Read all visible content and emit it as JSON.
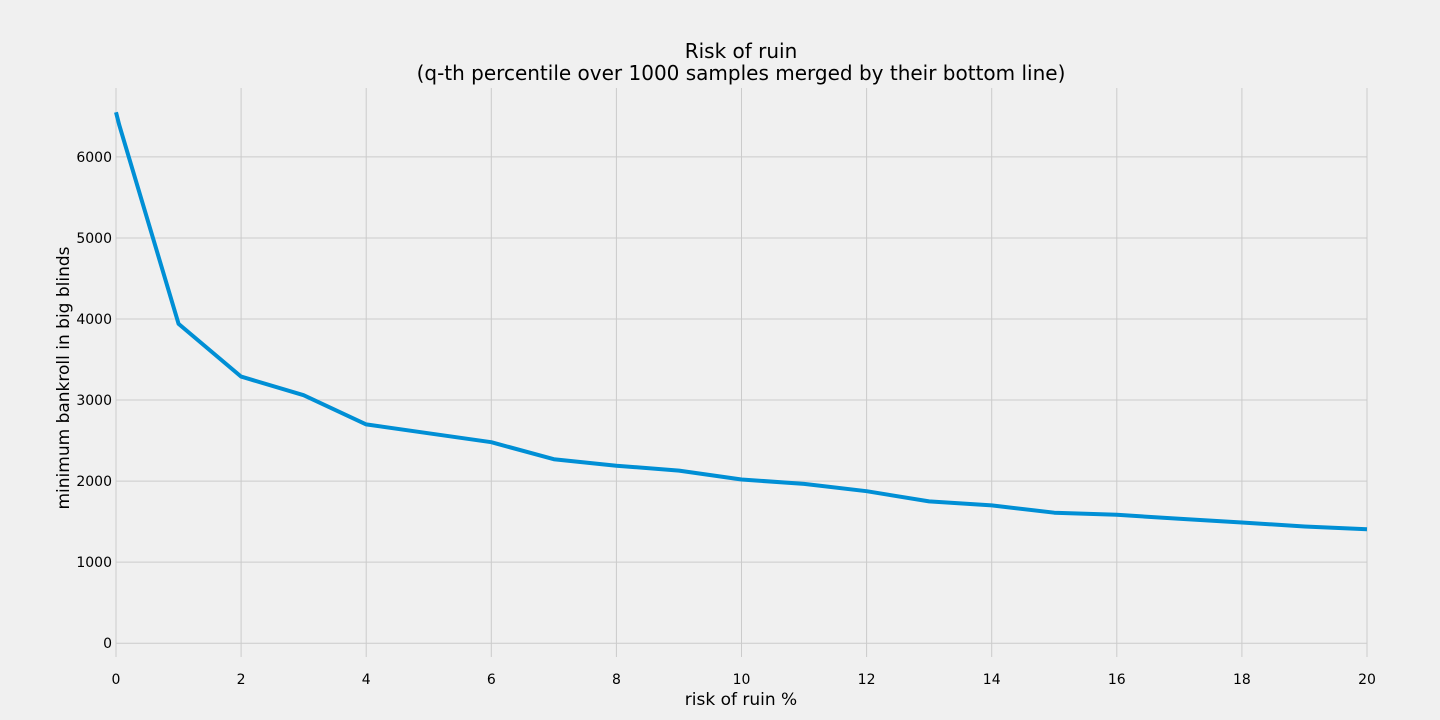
{
  "chart_data": {
    "type": "line",
    "title": "Risk of ruin",
    "subtitle": "(q-th percentile over 1000 samples merged by their bottom line)",
    "xlabel": "risk of ruin %",
    "ylabel": "minimum bankroll in big blinds",
    "xlim": [
      0,
      20
    ],
    "ylim": [
      -170,
      6850
    ],
    "xticks": [
      0,
      2,
      4,
      6,
      8,
      10,
      12,
      14,
      16,
      18,
      20
    ],
    "yticks": [
      0,
      1000,
      2000,
      3000,
      4000,
      5000,
      6000
    ],
    "grid": true,
    "background_color": "#f0f0f0",
    "series": [
      {
        "color": "#008fd5",
        "x": [
          0,
          0.05,
          1,
          2,
          3,
          4,
          5,
          6,
          7,
          8,
          9,
          10,
          11,
          12,
          13,
          14,
          15,
          16,
          17,
          18,
          19,
          20
        ],
        "y": [
          6550,
          6400,
          3940,
          3290,
          3060,
          2700,
          2590,
          2480,
          2270,
          2190,
          2130,
          2020,
          1965,
          1875,
          1750,
          1700,
          1610,
          1585,
          1535,
          1490,
          1440,
          1405
        ]
      }
    ]
  }
}
